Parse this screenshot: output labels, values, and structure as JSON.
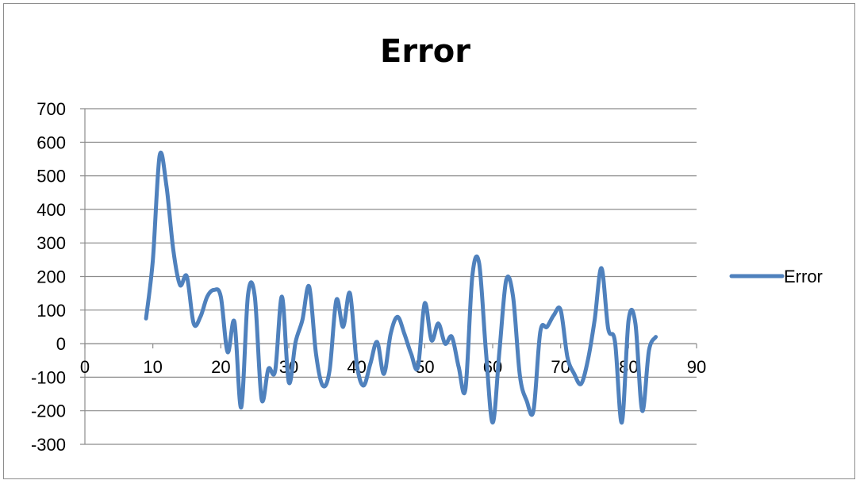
{
  "chart_data": {
    "type": "line",
    "title": "Error",
    "xlabel": "",
    "ylabel": "",
    "xlim": [
      0,
      90
    ],
    "ylim": [
      -300,
      700
    ],
    "x_ticks": [
      0,
      10,
      20,
      30,
      40,
      50,
      60,
      70,
      80,
      90
    ],
    "y_ticks": [
      700,
      600,
      500,
      400,
      300,
      200,
      100,
      0,
      -100,
      -200,
      -300
    ],
    "grid": true,
    "legend_position": "right",
    "series": [
      {
        "name": "Error",
        "color": "#4f81bd",
        "x": [
          9,
          10,
          11,
          12,
          13,
          14,
          15,
          16,
          17,
          18,
          19,
          20,
          21,
          22,
          23,
          24,
          25,
          26,
          27,
          28,
          29,
          30,
          31,
          32,
          33,
          34,
          35,
          36,
          37,
          38,
          39,
          40,
          41,
          42,
          43,
          44,
          45,
          46,
          47,
          48,
          49,
          50,
          51,
          52,
          53,
          54,
          55,
          56,
          57,
          58,
          59,
          60,
          61,
          62,
          63,
          64,
          65,
          66,
          67,
          68,
          69,
          70,
          71,
          72,
          73,
          74,
          75,
          76,
          77,
          78,
          79,
          80,
          81,
          82,
          83,
          84
        ],
        "values": [
          75,
          250,
          560,
          470,
          280,
          175,
          200,
          60,
          80,
          140,
          160,
          140,
          -25,
          65,
          -190,
          145,
          140,
          -165,
          -75,
          -80,
          140,
          -115,
          5,
          70,
          170,
          -30,
          -125,
          -80,
          130,
          50,
          150,
          -60,
          -125,
          -60,
          5,
          -90,
          30,
          80,
          30,
          -30,
          -70,
          120,
          10,
          60,
          0,
          20,
          -70,
          -135,
          200,
          240,
          -20,
          -235,
          -20,
          190,
          140,
          -95,
          -170,
          -200,
          35,
          50,
          85,
          100,
          -40,
          -90,
          -120,
          -50,
          70,
          225,
          45,
          5,
          -235,
          70,
          60,
          -200,
          -20,
          20
        ]
      }
    ]
  }
}
